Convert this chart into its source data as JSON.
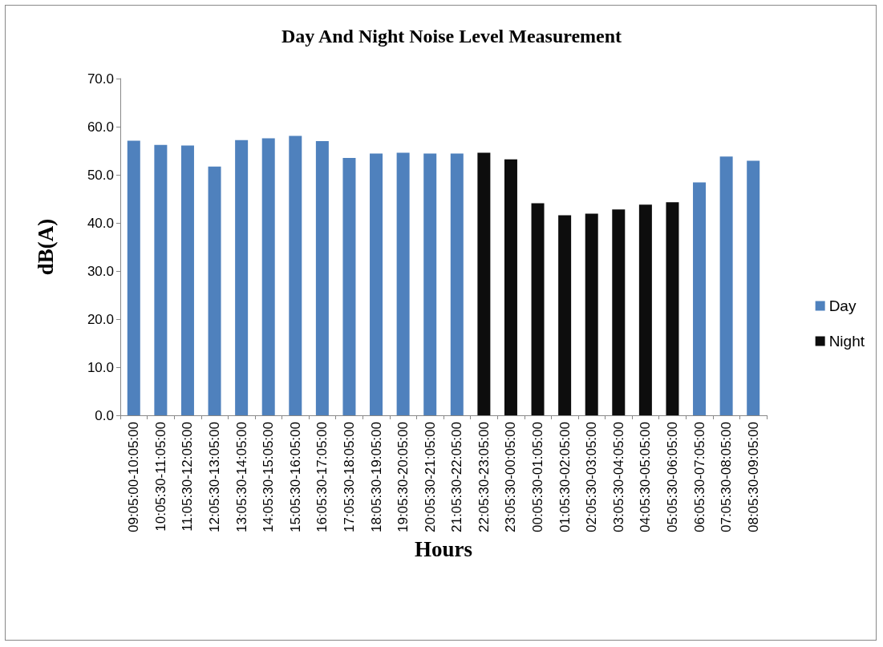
{
  "chart_data": {
    "type": "bar",
    "title": "Day And Night Noise Level Measurement",
    "xlabel": "Hours",
    "ylabel": "dB(A)",
    "categories": [
      "09:05:00-10:05:00",
      "10:05:30-11:05:00",
      "11:05:30-12:05:00",
      "12:05:30-13:05:00",
      "13:05:30-14:05:00",
      "14:05:30-15:05:00",
      "15:05:30-16:05:00",
      "16:05:30-17:05:00",
      "17:05:30-18:05:00",
      "18:05:30-19:05:00",
      "19:05:30-20:05:00",
      "20:05:30-21:05:00",
      "21:05:30-22:05:00",
      "22:05:30-23:05:00",
      "23:05:30-00:05:00",
      "00:05:30-01:05:00",
      "01:05:30-02:05:00",
      "02:05:30-03:05:00",
      "03:05:30-04:05:00",
      "04:05:30-05:05:00",
      "05:05:30-06:05:00",
      "06:05:30-07:05:00",
      "07:05:30-08:05:00",
      "08:05:30-09:05:00"
    ],
    "series": [
      {
        "name": "Day",
        "color": "#4f81bd",
        "values": [
          57.1,
          56.2,
          56.1,
          51.7,
          57.2,
          57.6,
          58.1,
          57.0,
          53.5,
          54.4,
          54.6,
          54.4,
          54.4,
          null,
          null,
          null,
          null,
          null,
          null,
          null,
          null,
          48.4,
          53.8,
          52.9
        ]
      },
      {
        "name": "Night",
        "color": "#0d0d0d",
        "values": [
          null,
          null,
          null,
          null,
          null,
          null,
          null,
          null,
          null,
          null,
          null,
          null,
          null,
          54.6,
          53.2,
          44.1,
          41.6,
          41.9,
          42.8,
          43.8,
          44.3,
          null,
          null,
          null
        ]
      }
    ],
    "ylim": [
      0,
      70
    ],
    "yticks": [
      {
        "value": 0,
        "label": "0.0"
      },
      {
        "value": 10,
        "label": "10.0"
      },
      {
        "value": 20,
        "label": "20.0"
      },
      {
        "value": 30,
        "label": "30.0"
      },
      {
        "value": 40,
        "label": "40.0"
      },
      {
        "value": 50,
        "label": "50.0"
      },
      {
        "value": 60,
        "label": "60.0"
      },
      {
        "value": 70,
        "label": "70.0"
      }
    ],
    "grid": false,
    "legend": "right"
  }
}
